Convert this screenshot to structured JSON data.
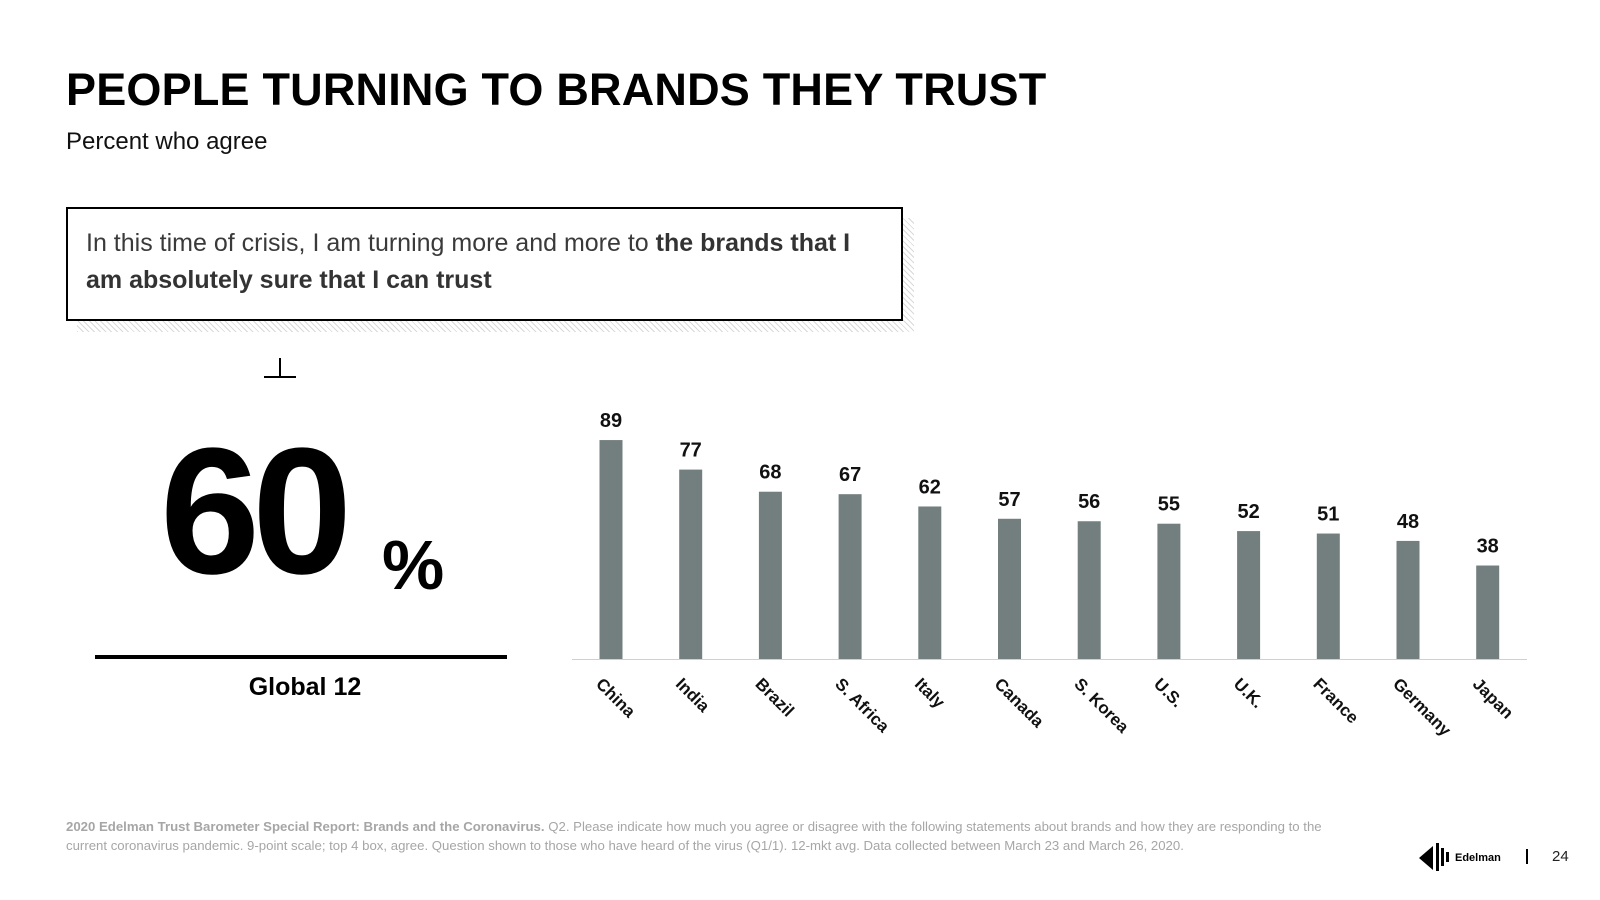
{
  "title": "PEOPLE TURNING TO BRANDS THEY TRUST",
  "subtitle": "Percent who agree",
  "statement": {
    "regular": "In this time of crisis, I am turning more and more to ",
    "bold": "the brands that I am absolutely sure that I can trust"
  },
  "global": {
    "value": "60",
    "unit": "%",
    "label": "Global 12"
  },
  "chart_data": {
    "type": "bar",
    "categories": [
      "China",
      "India",
      "Brazil",
      "S. Africa",
      "Italy",
      "Canada",
      "S. Korea",
      "U.S.",
      "U.K.",
      "France",
      "Germany",
      "Japan"
    ],
    "values": [
      89,
      77,
      68,
      67,
      62,
      57,
      56,
      55,
      52,
      51,
      48,
      38
    ],
    "ylim": [
      0,
      100
    ],
    "bar_color": "#737f7f",
    "data_labels": true,
    "grid": false
  },
  "footnote": {
    "source": "2020 Edelman Trust Barometer Special Report: Brands and the Coronavirus.",
    "text": " Q2. Please indicate how much you agree or disagree with the following statements about brands and how they are responding to the current coronavirus pandemic. 9-point scale; top 4 box, agree. Question shown to those who have heard of the virus (Q1/1). 12-mkt avg. Data collected between March 23 and March 26, 2020."
  },
  "brand": {
    "name": "Edelman",
    "icon": "edelman-logo-icon"
  },
  "page_number": "24"
}
